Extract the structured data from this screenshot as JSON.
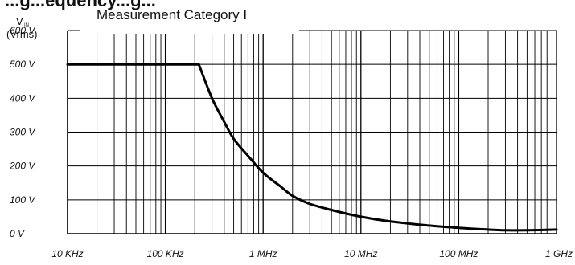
{
  "page": {
    "header_text": "...g...equency...g...",
    "title": "Measurement Category I"
  },
  "chart_data": {
    "type": "line",
    "title": "Measurement Category I",
    "ylabel_main": "V",
    "ylabel_sub": "IN",
    "ylabel_unit": "(Vrms)",
    "xscale": "log",
    "xlim": [
      10000,
      1000000000
    ],
    "ylim": [
      0,
      600
    ],
    "grid": true,
    "xtick_labels": [
      {
        "value": 10000,
        "label": "10 KHz"
      },
      {
        "value": 100000,
        "label": "100 KHz"
      },
      {
        "value": 1000000,
        "label": "1 MHz"
      },
      {
        "value": 10000000,
        "label": "10 MHz"
      },
      {
        "value": 100000000,
        "label": "100 MHz"
      },
      {
        "value": 1000000000,
        "label": "1 GHz"
      }
    ],
    "ytick_labels": [
      {
        "value": 0,
        "label": "0 V"
      },
      {
        "value": 100,
        "label": "100 V"
      },
      {
        "value": 200,
        "label": "200 V"
      },
      {
        "value": 300,
        "label": "300 V"
      },
      {
        "value": 400,
        "label": "400 V"
      },
      {
        "value": 500,
        "label": "500 V"
      },
      {
        "value": 600,
        "label": "600 V"
      }
    ],
    "series": [
      {
        "points": [
          [
            10000,
            500
          ],
          [
            200000,
            500
          ],
          [
            220000,
            500
          ],
          [
            300000,
            400
          ],
          [
            400000,
            330
          ],
          [
            500000,
            280
          ],
          [
            700000,
            230
          ],
          [
            1000000,
            180
          ],
          [
            1500000,
            140
          ],
          [
            2000000,
            112
          ],
          [
            3000000,
            88
          ],
          [
            5000000,
            70
          ],
          [
            10000000,
            50
          ],
          [
            20000000,
            36
          ],
          [
            50000000,
            24
          ],
          [
            100000000,
            17
          ],
          [
            200000000,
            12
          ],
          [
            300000000,
            10
          ],
          [
            500000000,
            10
          ],
          [
            1000000000,
            12
          ]
        ]
      }
    ]
  }
}
